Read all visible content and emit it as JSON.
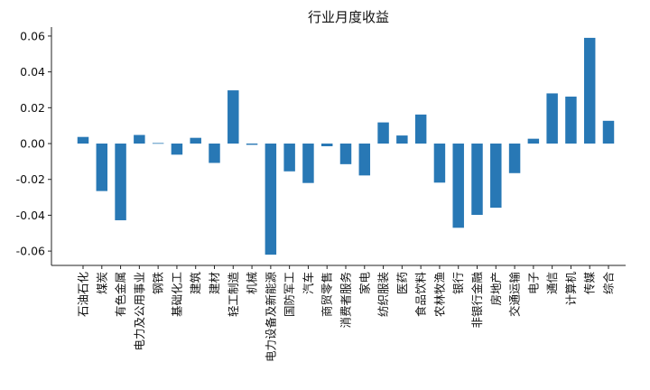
{
  "chart_data": {
    "type": "bar",
    "title": "行业月度收益",
    "xlabel": "",
    "ylabel": "",
    "ylim": [
      -0.068,
      0.065
    ],
    "yticks": [
      -0.06,
      -0.04,
      -0.02,
      0.0,
      0.02,
      0.04,
      0.06
    ],
    "ytick_labels": [
      "-0.06",
      "-0.04",
      "-0.02",
      "0.00",
      "0.02",
      "0.04",
      "0.06"
    ],
    "bar_color": "#2878b5",
    "grid": false,
    "categories": [
      "石油石化",
      "煤炭",
      "有色金属",
      "电力及公用事业",
      "钢铁",
      "基础化工",
      "建筑",
      "建材",
      "轻工制造",
      "机械",
      "电力设备及新能源",
      "国防军工",
      "汽车",
      "商贸零售",
      "消费者服务",
      "家电",
      "纺织服装",
      "医药",
      "食品饮料",
      "农林牧渔",
      "银行",
      "非银行金融",
      "房地产",
      "交通运输",
      "电子",
      "通信",
      "计算机",
      "传媒",
      "综合"
    ],
    "values": [
      0.0037,
      -0.0265,
      -0.0428,
      0.0048,
      0.0003,
      -0.0062,
      0.0032,
      -0.0108,
      0.0297,
      -0.0007,
      -0.062,
      -0.0155,
      -0.022,
      -0.0015,
      -0.0115,
      -0.0178,
      0.0118,
      0.0045,
      0.0162,
      -0.0218,
      -0.047,
      -0.0398,
      -0.0358,
      -0.0165,
      0.0027,
      0.028,
      0.0262,
      0.059,
      0.0127
    ]
  }
}
